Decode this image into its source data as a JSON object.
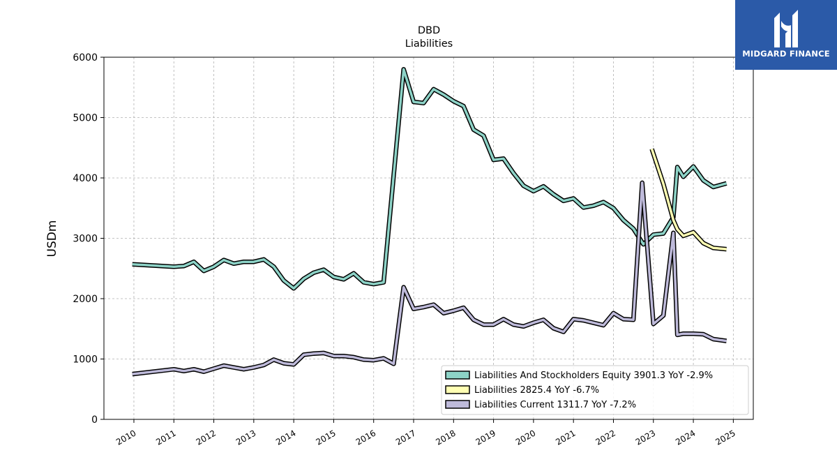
{
  "logo": {
    "text": "MIDGARD FINANCE",
    "background": "#2b5aa8"
  },
  "chart_data": {
    "type": "line",
    "title": "DBD",
    "subtitle": "Liabilities",
    "xlabel": "",
    "ylabel": "USDm",
    "xlim": [
      2009.25,
      2025.5
    ],
    "ylim": [
      0,
      6000
    ],
    "x_ticks": [
      "2010",
      "2011",
      "2012",
      "2013",
      "2014",
      "2015",
      "2016",
      "2017",
      "2018",
      "2019",
      "2020",
      "2021",
      "2022",
      "2023",
      "2024",
      "2025"
    ],
    "y_ticks": [
      "0",
      "1000",
      "2000",
      "3000",
      "4000",
      "5000",
      "6000"
    ],
    "grid": true,
    "legend_position": "lower-right",
    "series": [
      {
        "name": "Liabilities And Stockholders Equity",
        "legend": "Liabilities And Stockholders Equity  3901.3 YoY -2.9%",
        "color": "#8dd3c7",
        "points": [
          [
            2009.96,
            2570
          ],
          [
            2011.0,
            2530
          ],
          [
            2011.25,
            2540
          ],
          [
            2011.5,
            2610
          ],
          [
            2011.75,
            2460
          ],
          [
            2012.0,
            2530
          ],
          [
            2012.25,
            2640
          ],
          [
            2012.5,
            2580
          ],
          [
            2012.75,
            2610
          ],
          [
            2013.0,
            2610
          ],
          [
            2013.25,
            2650
          ],
          [
            2013.5,
            2530
          ],
          [
            2013.75,
            2300
          ],
          [
            2014.0,
            2170
          ],
          [
            2014.25,
            2330
          ],
          [
            2014.5,
            2430
          ],
          [
            2014.75,
            2480
          ],
          [
            2015.0,
            2360
          ],
          [
            2015.25,
            2320
          ],
          [
            2015.5,
            2420
          ],
          [
            2015.75,
            2270
          ],
          [
            2016.0,
            2240
          ],
          [
            2016.25,
            2270
          ],
          [
            2016.75,
            5800
          ],
          [
            2017.0,
            5260
          ],
          [
            2017.25,
            5240
          ],
          [
            2017.5,
            5470
          ],
          [
            2017.75,
            5380
          ],
          [
            2018.0,
            5270
          ],
          [
            2018.25,
            5190
          ],
          [
            2018.5,
            4800
          ],
          [
            2018.75,
            4700
          ],
          [
            2019.0,
            4300
          ],
          [
            2019.25,
            4320
          ],
          [
            2019.5,
            4080
          ],
          [
            2019.75,
            3870
          ],
          [
            2020.0,
            3780
          ],
          [
            2020.25,
            3860
          ],
          [
            2020.5,
            3730
          ],
          [
            2020.75,
            3620
          ],
          [
            2021.0,
            3660
          ],
          [
            2021.25,
            3510
          ],
          [
            2021.5,
            3540
          ],
          [
            2021.75,
            3600
          ],
          [
            2022.0,
            3500
          ],
          [
            2022.25,
            3300
          ],
          [
            2022.5,
            3160
          ],
          [
            2022.75,
            2900
          ],
          [
            2023.0,
            3060
          ],
          [
            2023.25,
            3080
          ],
          [
            2023.5,
            3350
          ],
          [
            2023.6,
            4180
          ],
          [
            2023.75,
            4020
          ],
          [
            2024.0,
            4190
          ],
          [
            2024.25,
            3960
          ],
          [
            2024.5,
            3850
          ],
          [
            2024.83,
            3910
          ]
        ]
      },
      {
        "name": "Liabilities",
        "legend": "Liabilities  2825.4 YoY -6.7%",
        "color": "#ffffb3",
        "points": [
          [
            2022.96,
            4480
          ],
          [
            2023.25,
            3900
          ],
          [
            2023.5,
            3300
          ],
          [
            2023.6,
            3150
          ],
          [
            2023.75,
            3040
          ],
          [
            2024.0,
            3100
          ],
          [
            2024.25,
            2920
          ],
          [
            2024.5,
            2840
          ],
          [
            2024.83,
            2820
          ]
        ]
      },
      {
        "name": "Liabilities Current",
        "legend": "Liabilities Current  1311.7 YoY -7.2%",
        "color": "#bebada",
        "points": [
          [
            2009.96,
            750
          ],
          [
            2011.0,
            830
          ],
          [
            2011.25,
            800
          ],
          [
            2011.5,
            830
          ],
          [
            2011.75,
            790
          ],
          [
            2012.0,
            840
          ],
          [
            2012.25,
            890
          ],
          [
            2012.5,
            860
          ],
          [
            2012.75,
            830
          ],
          [
            2013.0,
            860
          ],
          [
            2013.25,
            900
          ],
          [
            2013.5,
            990
          ],
          [
            2013.75,
            930
          ],
          [
            2014.0,
            910
          ],
          [
            2014.25,
            1070
          ],
          [
            2014.5,
            1090
          ],
          [
            2014.75,
            1100
          ],
          [
            2015.0,
            1050
          ],
          [
            2015.25,
            1050
          ],
          [
            2015.5,
            1030
          ],
          [
            2015.75,
            990
          ],
          [
            2016.0,
            980
          ],
          [
            2016.25,
            1010
          ],
          [
            2016.5,
            920
          ],
          [
            2016.75,
            2190
          ],
          [
            2017.0,
            1830
          ],
          [
            2017.25,
            1860
          ],
          [
            2017.5,
            1900
          ],
          [
            2017.75,
            1760
          ],
          [
            2018.0,
            1800
          ],
          [
            2018.25,
            1850
          ],
          [
            2018.5,
            1650
          ],
          [
            2018.75,
            1570
          ],
          [
            2019.0,
            1570
          ],
          [
            2019.25,
            1660
          ],
          [
            2019.5,
            1570
          ],
          [
            2019.75,
            1540
          ],
          [
            2020.0,
            1600
          ],
          [
            2020.25,
            1650
          ],
          [
            2020.5,
            1510
          ],
          [
            2020.75,
            1450
          ],
          [
            2021.0,
            1660
          ],
          [
            2021.25,
            1640
          ],
          [
            2021.5,
            1600
          ],
          [
            2021.75,
            1560
          ],
          [
            2022.0,
            1760
          ],
          [
            2022.25,
            1660
          ],
          [
            2022.5,
            1650
          ],
          [
            2022.72,
            3920
          ],
          [
            2023.0,
            1580
          ],
          [
            2023.25,
            1720
          ],
          [
            2023.5,
            3090
          ],
          [
            2023.6,
            1400
          ],
          [
            2023.75,
            1420
          ],
          [
            2024.0,
            1420
          ],
          [
            2024.25,
            1410
          ],
          [
            2024.5,
            1330
          ],
          [
            2024.83,
            1300
          ]
        ]
      }
    ]
  }
}
